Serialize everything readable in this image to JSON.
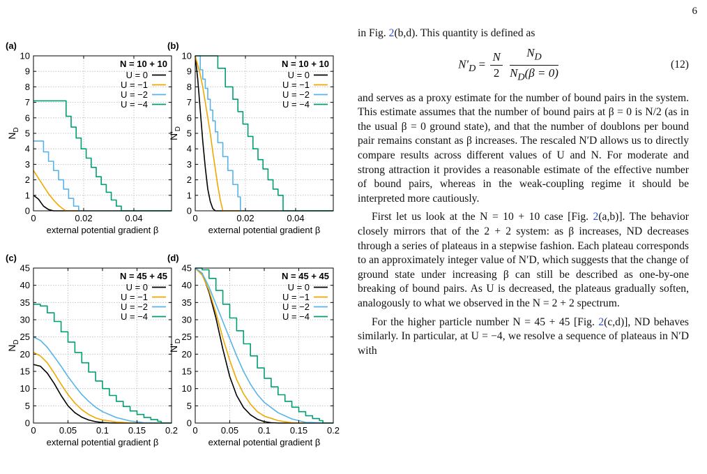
{
  "page_number": "6",
  "text": {
    "line1_pre": "in Fig. ",
    "line1_ref": "2",
    "line1_post": "(b,d). This quantity is defined as",
    "equation": {
      "lhs": "N′",
      "lhs_sub": "D",
      "eq": " = ",
      "frac1_num": "N",
      "frac1_den": "2",
      "frac2_num": "N",
      "frac2_num_sub": "D",
      "frac2_den": "N",
      "frac2_den_sub": "D",
      "frac2_den_arg": "(β = 0)",
      "number": "(12)"
    },
    "para1": "and serves as a proxy estimate for the number of bound pairs in the system. This estimate assumes that the number of bound pairs at β = 0 is N/2 (as in the usual β = 0 ground state), and that the number of doublons per bound pair remains constant as β increases. The rescaled N′D allows us to directly compare results across different values of U and N. For moderate and strong attraction it provides a reasonable estimate of the effective number of bound pairs, whereas in the weak-coupling regime it should be interpreted more cautiously.",
    "para2_pre": "First let us look at the N = 10 + 10 case [Fig. ",
    "para2_ref": "2",
    "para2_post": "(a,b)]. The behavior closely mirrors that of the 2 + 2 system: as β increases, ND decreases through a series of plateaus in a stepwise fashion. Each plateau corresponds to an approximately integer value of N′D, which suggests that the change of ground state under increasing β can still be described as one-by-one breaking of bound pairs. As U is decreased, the plateaus gradually soften, analogously to what we observed in the N = 2 + 2 spectrum.",
    "para3_pre": "For the higher particle number N = 45 + 45 [Fig. ",
    "para3_ref": "2",
    "para3_post": "(c,d)], ND behaves similarly. In particular, at U = −4, we resolve a sequence of plateaus in N′D with"
  },
  "colors": {
    "U0": "#000000",
    "U1": "#f0a800",
    "U2": "#56b4e9",
    "U4": "#009e73",
    "grid": "#b8b8b8",
    "link": "#2a4ecf"
  },
  "chart_data": [
    {
      "panel": "(a)",
      "type": "line",
      "annotation": "N = 10 + 10",
      "xlabel": "external potential gradient β",
      "ylabel": "N_D",
      "xlim": [
        0,
        0.055
      ],
      "ylim": [
        0,
        10
      ],
      "xticks": [
        0,
        0.02,
        0.04
      ],
      "xticklabels": [
        "0",
        "0.02",
        "0.04"
      ],
      "yticks": [
        0,
        1,
        2,
        3,
        4,
        5,
        6,
        7,
        8,
        9,
        10
      ],
      "grid": true,
      "legend_position": "top-right",
      "series": [
        {
          "name": "U = 0",
          "color": "#000000",
          "x": [
            0,
            0.002,
            0.004,
            0.006,
            0.008,
            0.055
          ],
          "y": [
            1.0,
            0.75,
            0.3,
            0.08,
            0,
            0
          ]
        },
        {
          "name": "U = −1",
          "color": "#f0a800",
          "x": [
            0,
            0.002,
            0.004,
            0.006,
            0.008,
            0.01,
            0.012,
            0.013,
            0.055
          ],
          "y": [
            2.6,
            2.1,
            1.6,
            1.1,
            0.7,
            0.35,
            0.1,
            0,
            0
          ]
        },
        {
          "name": "U = −2",
          "color": "#56b4e9",
          "step": true,
          "x": [
            0,
            0.004,
            0.006,
            0.008,
            0.01,
            0.012,
            0.014,
            0.016,
            0.018,
            0.055
          ],
          "y": [
            4.5,
            3.8,
            3.2,
            2.6,
            2.0,
            1.4,
            0.8,
            0.3,
            0,
            0
          ]
        },
        {
          "name": "U = −4",
          "color": "#009e73",
          "step": true,
          "x": [
            0,
            0.013,
            0.015,
            0.017,
            0.019,
            0.021,
            0.023,
            0.025,
            0.027,
            0.029,
            0.031,
            0.033,
            0.035,
            0.055
          ],
          "y": [
            7.1,
            6.1,
            5.4,
            4.7,
            4.0,
            3.4,
            2.8,
            2.2,
            1.7,
            1.2,
            0.7,
            0.3,
            0,
            0
          ]
        }
      ]
    },
    {
      "panel": "(b)",
      "type": "line",
      "annotation": "N = 10 + 10",
      "xlabel": "external potential gradient β",
      "ylabel": "N'_D",
      "xlim": [
        0,
        0.055
      ],
      "ylim": [
        0,
        10
      ],
      "xticks": [
        0,
        0.02,
        0.04
      ],
      "xticklabels": [
        "0",
        "0.02",
        "0.04"
      ],
      "yticks": [
        0,
        1,
        2,
        3,
        4,
        5,
        6,
        7,
        8,
        9,
        10
      ],
      "grid": true,
      "legend_position": "top-right",
      "series": [
        {
          "name": "U = 0",
          "color": "#000000",
          "x": [
            0,
            0.001,
            0.002,
            0.003,
            0.004,
            0.005,
            0.006,
            0.007,
            0.008,
            0.055
          ],
          "y": [
            10,
            8.5,
            6.5,
            4.5,
            2.8,
            1.4,
            0.6,
            0.15,
            0,
            0
          ]
        },
        {
          "name": "U = −1",
          "color": "#f0a800",
          "x": [
            0,
            0.002,
            0.003,
            0.004,
            0.005,
            0.006,
            0.007,
            0.008,
            0.009,
            0.01,
            0.011,
            0.055
          ],
          "y": [
            10,
            8.8,
            8.0,
            7.0,
            6.0,
            5.0,
            3.8,
            2.7,
            1.6,
            0.7,
            0,
            0
          ]
        },
        {
          "name": "U = −2",
          "color": "#56b4e9",
          "step": true,
          "x": [
            0,
            0.002,
            0.003,
            0.004,
            0.005,
            0.006,
            0.007,
            0.008,
            0.009,
            0.011,
            0.013,
            0.015,
            0.017,
            0.018,
            0.055
          ],
          "y": [
            10,
            9.1,
            8.5,
            7.9,
            7.2,
            6.5,
            5.8,
            5.1,
            4.4,
            3.5,
            2.6,
            1.7,
            0.9,
            0,
            0
          ]
        },
        {
          "name": "U = −4",
          "color": "#009e73",
          "step": true,
          "x": [
            0,
            0.009,
            0.012,
            0.015,
            0.017,
            0.019,
            0.021,
            0.023,
            0.025,
            0.027,
            0.029,
            0.031,
            0.033,
            0.035,
            0.055
          ],
          "y": [
            10,
            9.2,
            8.0,
            7.2,
            6.4,
            5.6,
            4.8,
            4.0,
            3.3,
            2.7,
            2.0,
            1.4,
            1.0,
            0,
            0
          ]
        }
      ]
    },
    {
      "panel": "(c)",
      "type": "line",
      "annotation": "N = 45 + 45",
      "xlabel": "external potential gradient β",
      "ylabel": "N_D",
      "xlim": [
        0,
        0.2
      ],
      "ylim": [
        0,
        45
      ],
      "xticks": [
        0,
        0.05,
        0.1,
        0.15,
        0.2
      ],
      "xticklabels": [
        "0",
        "0.05",
        "0.1",
        "0.15",
        "0.2"
      ],
      "yticks": [
        0,
        5,
        10,
        15,
        20,
        25,
        30,
        35,
        40,
        45
      ],
      "grid": true,
      "legend_position": "top-right",
      "series": [
        {
          "name": "U = 0",
          "color": "#000000",
          "x": [
            0,
            0.01,
            0.02,
            0.03,
            0.04,
            0.05,
            0.06,
            0.07,
            0.08,
            0.09,
            0.1,
            0.11,
            0.12,
            0.2
          ],
          "y": [
            17,
            16.5,
            14.5,
            11.5,
            8,
            5,
            3,
            1.7,
            0.9,
            0.4,
            0.15,
            0.05,
            0,
            0
          ]
        },
        {
          "name": "U = −1",
          "color": "#f0a800",
          "x": [
            0,
            0.01,
            0.02,
            0.03,
            0.04,
            0.05,
            0.06,
            0.07,
            0.08,
            0.09,
            0.1,
            0.12,
            0.14,
            0.2
          ],
          "y": [
            20.5,
            19.5,
            17.5,
            14.5,
            11.3,
            8.3,
            5.8,
            3.9,
            2.5,
            1.5,
            0.9,
            0.3,
            0.05,
            0
          ]
        },
        {
          "name": "U = −2",
          "color": "#56b4e9",
          "x": [
            0,
            0.01,
            0.02,
            0.03,
            0.04,
            0.05,
            0.06,
            0.07,
            0.08,
            0.09,
            0.1,
            0.12,
            0.14,
            0.16,
            0.2
          ],
          "y": [
            25,
            24,
            22,
            19.3,
            16.5,
            13.5,
            10.8,
            8.3,
            6.3,
            4.6,
            3.3,
            1.6,
            0.6,
            0.1,
            0
          ]
        },
        {
          "name": "U = −4",
          "color": "#009e73",
          "step": true,
          "x": [
            0,
            0.01,
            0.02,
            0.03,
            0.04,
            0.05,
            0.06,
            0.07,
            0.08,
            0.09,
            0.1,
            0.11,
            0.12,
            0.13,
            0.14,
            0.15,
            0.16,
            0.17,
            0.18,
            0.185,
            0.2
          ],
          "y": [
            34.5,
            34,
            32,
            29.5,
            26.5,
            23.5,
            20.5,
            17.5,
            14.8,
            12.2,
            10,
            8,
            6.3,
            4.8,
            3.5,
            2.5,
            1.6,
            1,
            0.5,
            0,
            0
          ]
        }
      ]
    },
    {
      "panel": "(d)",
      "type": "line",
      "annotation": "N = 45 + 45",
      "xlabel": "external potential gradient β",
      "ylabel": "N'_D",
      "xlim": [
        0,
        0.2
      ],
      "ylim": [
        0,
        45
      ],
      "xticks": [
        0,
        0.05,
        0.1,
        0.15,
        0.2
      ],
      "xticklabels": [
        "0",
        "0.05",
        "0.1",
        "0.15",
        "0.2"
      ],
      "yticks": [
        0,
        5,
        10,
        15,
        20,
        25,
        30,
        35,
        40,
        45
      ],
      "grid": true,
      "legend_position": "top-right",
      "series": [
        {
          "name": "U = 0",
          "color": "#000000",
          "x": [
            0,
            0.01,
            0.02,
            0.03,
            0.04,
            0.05,
            0.06,
            0.07,
            0.08,
            0.09,
            0.1,
            0.11,
            0.12,
            0.2
          ],
          "y": [
            45,
            43.5,
            38,
            30.5,
            21.5,
            13.5,
            8,
            4.5,
            2.4,
            1.1,
            0.4,
            0.1,
            0,
            0
          ]
        },
        {
          "name": "U = −1",
          "color": "#f0a800",
          "x": [
            0,
            0.01,
            0.02,
            0.03,
            0.04,
            0.05,
            0.06,
            0.07,
            0.08,
            0.09,
            0.1,
            0.12,
            0.14,
            0.2
          ],
          "y": [
            45,
            43,
            38.5,
            32,
            24.7,
            18.2,
            12.6,
            8.5,
            5.5,
            3.3,
            2,
            0.7,
            0.1,
            0
          ]
        },
        {
          "name": "U = −2",
          "color": "#56b4e9",
          "x": [
            0,
            0.01,
            0.02,
            0.03,
            0.04,
            0.05,
            0.06,
            0.07,
            0.08,
            0.09,
            0.1,
            0.12,
            0.14,
            0.16,
            0.2
          ],
          "y": [
            45,
            43.5,
            39.5,
            34.5,
            29.5,
            24.5,
            19.5,
            15,
            11.3,
            8.3,
            6,
            3,
            1.2,
            0.2,
            0
          ]
        },
        {
          "name": "U = −4",
          "color": "#009e73",
          "step": true,
          "x": [
            0,
            0.01,
            0.02,
            0.03,
            0.04,
            0.05,
            0.06,
            0.07,
            0.08,
            0.09,
            0.1,
            0.11,
            0.12,
            0.13,
            0.14,
            0.15,
            0.16,
            0.17,
            0.18,
            0.185,
            0.2
          ],
          "y": [
            45,
            44.5,
            42,
            38.5,
            34.5,
            30.5,
            26.8,
            23,
            19.5,
            16,
            13,
            10.5,
            8.2,
            6.3,
            4.6,
            3.3,
            2.1,
            1.3,
            0.7,
            0,
            0
          ]
        }
      ]
    }
  ]
}
